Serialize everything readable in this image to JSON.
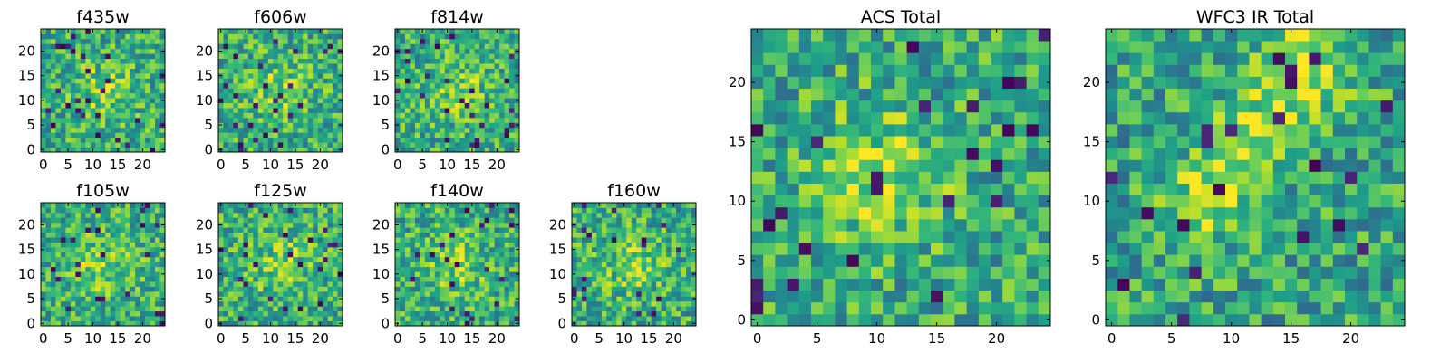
{
  "chart_data": [
    {
      "type": "heatmap",
      "title": "f435w",
      "xticks": [
        "0",
        "5",
        "10",
        "15",
        "20"
      ],
      "yticks": [
        "0",
        "5",
        "10",
        "15",
        "20"
      ],
      "xlim": [
        -0.5,
        24.5
      ],
      "ylim": [
        -0.5,
        24.5
      ],
      "grid_size": 25,
      "colormap": "viridis",
      "bright_region": "center",
      "grid": false
    },
    {
      "type": "heatmap",
      "title": "f606w",
      "xticks": [
        "0",
        "5",
        "10",
        "15",
        "20"
      ],
      "yticks": [
        "0",
        "5",
        "10",
        "15",
        "20"
      ],
      "xlim": [
        -0.5,
        24.5
      ],
      "ylim": [
        -0.5,
        24.5
      ],
      "grid_size": 25,
      "colormap": "viridis",
      "bright_region": "center",
      "grid": false
    },
    {
      "type": "heatmap",
      "title": "f814w",
      "xticks": [
        "0",
        "5",
        "10",
        "15",
        "20"
      ],
      "yticks": [
        "0",
        "5",
        "10",
        "15",
        "20"
      ],
      "xlim": [
        -0.5,
        24.5
      ],
      "ylim": [
        -0.5,
        24.5
      ],
      "grid_size": 25,
      "colormap": "viridis",
      "bright_region": "center",
      "grid": false
    },
    {
      "type": "heatmap",
      "title": "f105w",
      "xticks": [
        "0",
        "5",
        "10",
        "15",
        "20"
      ],
      "yticks": [
        "0",
        "5",
        "10",
        "15",
        "20"
      ],
      "xlim": [
        -0.5,
        24.5
      ],
      "ylim": [
        -0.5,
        24.5
      ],
      "grid_size": 25,
      "colormap": "viridis",
      "bright_region": "center",
      "grid": false
    },
    {
      "type": "heatmap",
      "title": "f125w",
      "xticks": [
        "0",
        "5",
        "10",
        "15",
        "20"
      ],
      "yticks": [
        "0",
        "5",
        "10",
        "15",
        "20"
      ],
      "xlim": [
        -0.5,
        24.5
      ],
      "ylim": [
        -0.5,
        24.5
      ],
      "grid_size": 25,
      "colormap": "viridis",
      "bright_region": "center",
      "grid": false
    },
    {
      "type": "heatmap",
      "title": "f140w",
      "xticks": [
        "0",
        "5",
        "10",
        "15",
        "20"
      ],
      "yticks": [
        "0",
        "5",
        "10",
        "15",
        "20"
      ],
      "xlim": [
        -0.5,
        24.5
      ],
      "ylim": [
        -0.5,
        24.5
      ],
      "grid_size": 25,
      "colormap": "viridis",
      "bright_region": "center",
      "grid": false
    },
    {
      "type": "heatmap",
      "title": "f160w",
      "xticks": [
        "0",
        "5",
        "10",
        "15",
        "20"
      ],
      "yticks": [
        "0",
        "5",
        "10",
        "15",
        "20"
      ],
      "xlim": [
        -0.5,
        24.5
      ],
      "ylim": [
        -0.5,
        24.5
      ],
      "grid_size": 25,
      "colormap": "viridis",
      "bright_region": "center",
      "grid": false
    },
    {
      "type": "heatmap",
      "title": "ACS Total",
      "xticks": [
        "0",
        "5",
        "10",
        "15",
        "20"
      ],
      "yticks": [
        "0",
        "5",
        "10",
        "15",
        "20"
      ],
      "xlim": [
        -0.5,
        24.5
      ],
      "ylim": [
        -0.5,
        24.5
      ],
      "grid_size": 25,
      "colormap": "viridis",
      "bright_region": "center-left, near (10, 12)",
      "grid": false
    },
    {
      "type": "heatmap",
      "title": "WFC3 IR Total",
      "xticks": [
        "0",
        "5",
        "10",
        "15",
        "20"
      ],
      "yticks": [
        "0",
        "5",
        "10",
        "15",
        "20"
      ],
      "xlim": [
        -0.5,
        24.5
      ],
      "ylim": [
        -0.5,
        24.5
      ],
      "grid_size": 25,
      "colormap": "viridis",
      "bright_region": "diagonal ridge from (8, 10) to (17, 22)",
      "grid": false
    }
  ]
}
